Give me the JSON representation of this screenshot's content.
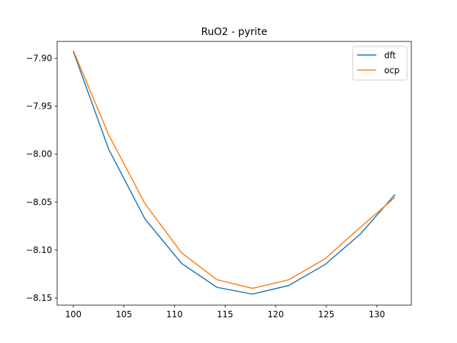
{
  "chart_data": {
    "type": "line",
    "title": "RuO2 - pyrite",
    "xlabel": "",
    "ylabel": "",
    "xlim": [
      98.4,
      133.4
    ],
    "ylim": [
      -8.1575,
      -7.8825
    ],
    "xticks": [
      100,
      105,
      110,
      115,
      120,
      125,
      130
    ],
    "yticks": [
      -7.9,
      -7.95,
      -8.0,
      -8.05,
      -8.1,
      -8.15
    ],
    "xtick_labels": [
      "100",
      "105",
      "110",
      "115",
      "120",
      "125",
      "130"
    ],
    "ytick_labels": [
      "−7.90",
      "−7.95",
      "−8.00",
      "−8.05",
      "−8.10",
      "−8.15"
    ],
    "grid": false,
    "legend_position": "top-right",
    "x": [
      100.0,
      103.5,
      107.1,
      110.7,
      114.2,
      117.7,
      121.3,
      124.9,
      128.4,
      131.8
    ],
    "series": [
      {
        "name": "dft",
        "color": "#1f77b4",
        "values": [
          -7.893,
          -7.995,
          -8.068,
          -8.114,
          -8.139,
          -8.146,
          -8.137,
          -8.115,
          -8.083,
          -8.042
        ]
      },
      {
        "name": "ocp",
        "color": "#ff7f0e",
        "values": [
          -7.892,
          -7.98,
          -8.052,
          -8.103,
          -8.131,
          -8.14,
          -8.131,
          -8.109,
          -8.076,
          -8.045
        ]
      }
    ]
  }
}
